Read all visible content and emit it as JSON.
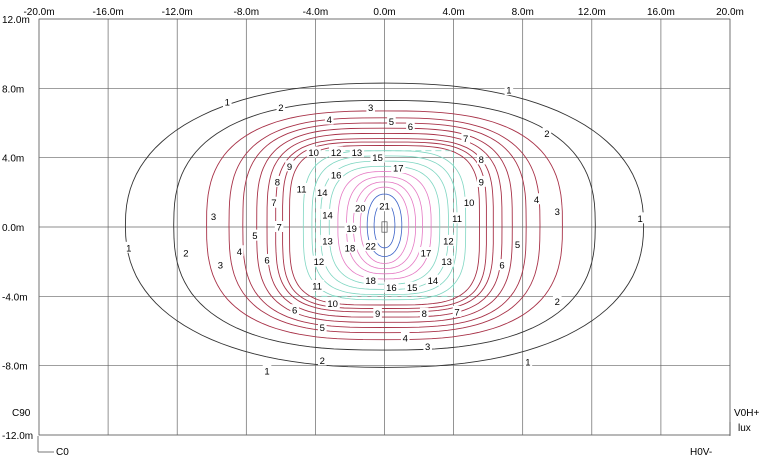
{
  "chart_data": {
    "type": "contour",
    "unit": "lux",
    "x_ticks": [
      "-20.0m",
      "-16.0m",
      "-12.0m",
      "-8.0m",
      "-4.0m",
      "0.0m",
      "4.0m",
      "8.0m",
      "12.0m",
      "16.0m",
      "20.0m"
    ],
    "y_ticks": [
      "12.0m",
      "8.0m",
      "4.0m",
      "0.0m",
      "-4.0m",
      "-8.0m",
      "-12.0m"
    ],
    "xlim": [
      -20,
      20
    ],
    "ylim": [
      -12,
      12
    ],
    "corner_labels": {
      "left_c90": "C90",
      "bottom_c0": "C0",
      "right_v0h": "V0H+",
      "bottom_right_h0v": "H0V-",
      "unit": "lux"
    },
    "contour_levels": [
      1,
      2,
      3,
      4,
      5,
      6,
      7,
      8,
      9,
      10,
      11,
      12,
      13,
      14,
      15,
      16,
      17,
      18,
      19,
      20,
      21,
      22
    ],
    "colors": {
      "outer": "#333333",
      "mid": "#a83248",
      "inner": "#7fd6c2",
      "core": "#e57ac4",
      "center": "#3c63c8"
    },
    "contour_labels": [
      {
        "text": "1",
        "x": -9.1,
        "y": 7.2
      },
      {
        "text": "1",
        "x": 7.2,
        "y": 7.9
      },
      {
        "text": "1",
        "x": 14.8,
        "y": 0.5
      },
      {
        "text": "1",
        "x": -14.8,
        "y": -1.2
      },
      {
        "text": "1",
        "x": -6.8,
        "y": -8.3
      },
      {
        "text": "1",
        "x": 8.3,
        "y": -7.8
      },
      {
        "text": "2",
        "x": -6.0,
        "y": 6.9
      },
      {
        "text": "2",
        "x": 9.4,
        "y": 5.4
      },
      {
        "text": "2",
        "x": -11.5,
        "y": -1.5
      },
      {
        "text": "2",
        "x": 10.0,
        "y": -4.3
      },
      {
        "text": "2",
        "x": -3.6,
        "y": -7.7
      },
      {
        "text": "3",
        "x": -0.8,
        "y": 6.9
      },
      {
        "text": "3",
        "x": 10.0,
        "y": 0.9
      },
      {
        "text": "3",
        "x": -9.9,
        "y": 0.6
      },
      {
        "text": "3",
        "x": -9.5,
        "y": -2.2
      },
      {
        "text": "3",
        "x": 2.5,
        "y": -6.9
      },
      {
        "text": "4",
        "x": -3.2,
        "y": 6.2
      },
      {
        "text": "4",
        "x": 8.8,
        "y": 1.6
      },
      {
        "text": "4",
        "x": -8.4,
        "y": -1.4
      },
      {
        "text": "4",
        "x": 1.2,
        "y": -6.4
      },
      {
        "text": "5",
        "x": 0.4,
        "y": 6.1
      },
      {
        "text": "5",
        "x": 7.7,
        "y": -1.0
      },
      {
        "text": "5",
        "x": -7.5,
        "y": -0.5
      },
      {
        "text": "5",
        "x": -3.6,
        "y": -5.8
      },
      {
        "text": "6",
        "x": 1.5,
        "y": 5.8
      },
      {
        "text": "6",
        "x": 6.8,
        "y": -2.2
      },
      {
        "text": "6",
        "x": -6.8,
        "y": -1.9
      },
      {
        "text": "6",
        "x": -5.2,
        "y": -4.8
      },
      {
        "text": "7",
        "x": 4.7,
        "y": 5.1
      },
      {
        "text": "7",
        "x": -6.4,
        "y": 1.4
      },
      {
        "text": "7",
        "x": -6.1,
        "y": 0.0
      },
      {
        "text": "7",
        "x": 4.2,
        "y": -4.9
      },
      {
        "text": "8",
        "x": 5.6,
        "y": 3.9
      },
      {
        "text": "8",
        "x": -6.2,
        "y": 2.6
      },
      {
        "text": "8",
        "x": 2.3,
        "y": -5.0
      },
      {
        "text": "9",
        "x": -5.5,
        "y": 3.5
      },
      {
        "text": "9",
        "x": 5.6,
        "y": 2.6
      },
      {
        "text": "9",
        "x": -0.4,
        "y": -5.0
      },
      {
        "text": "10",
        "x": -4.1,
        "y": 4.3
      },
      {
        "text": "10",
        "x": 4.9,
        "y": 1.4
      },
      {
        "text": "10",
        "x": -3.0,
        "y": -4.4
      },
      {
        "text": "11",
        "x": -4.8,
        "y": 2.2
      },
      {
        "text": "11",
        "x": 4.2,
        "y": 0.5
      },
      {
        "text": "11",
        "x": -3.9,
        "y": -3.4
      },
      {
        "text": "12",
        "x": -2.8,
        "y": 4.3
      },
      {
        "text": "12",
        "x": 3.7,
        "y": -0.8
      },
      {
        "text": "12",
        "x": -3.8,
        "y": -2.0
      },
      {
        "text": "13",
        "x": -1.6,
        "y": 4.3
      },
      {
        "text": "13",
        "x": -3.3,
        "y": -0.8
      },
      {
        "text": "13",
        "x": 3.6,
        "y": -2.0
      },
      {
        "text": "14",
        "x": -3.6,
        "y": 2.0
      },
      {
        "text": "14",
        "x": -3.3,
        "y": 0.7
      },
      {
        "text": "14",
        "x": 2.8,
        "y": -3.1
      },
      {
        "text": "15",
        "x": -0.4,
        "y": 4.0
      },
      {
        "text": "15",
        "x": 1.6,
        "y": -3.5
      },
      {
        "text": "16",
        "x": -2.8,
        "y": 3.0
      },
      {
        "text": "16",
        "x": 0.4,
        "y": -3.5
      },
      {
        "text": "17",
        "x": 0.8,
        "y": 3.4
      },
      {
        "text": "17",
        "x": 2.4,
        "y": -1.5
      },
      {
        "text": "18",
        "x": -2.0,
        "y": -1.2
      },
      {
        "text": "18",
        "x": -0.8,
        "y": -3.1
      },
      {
        "text": "19",
        "x": -1.9,
        "y": -0.1
      },
      {
        "text": "20",
        "x": -1.4,
        "y": 1.1
      },
      {
        "text": "21",
        "x": 0.0,
        "y": 1.2
      },
      {
        "text": "22",
        "x": -0.8,
        "y": -1.1
      }
    ]
  }
}
